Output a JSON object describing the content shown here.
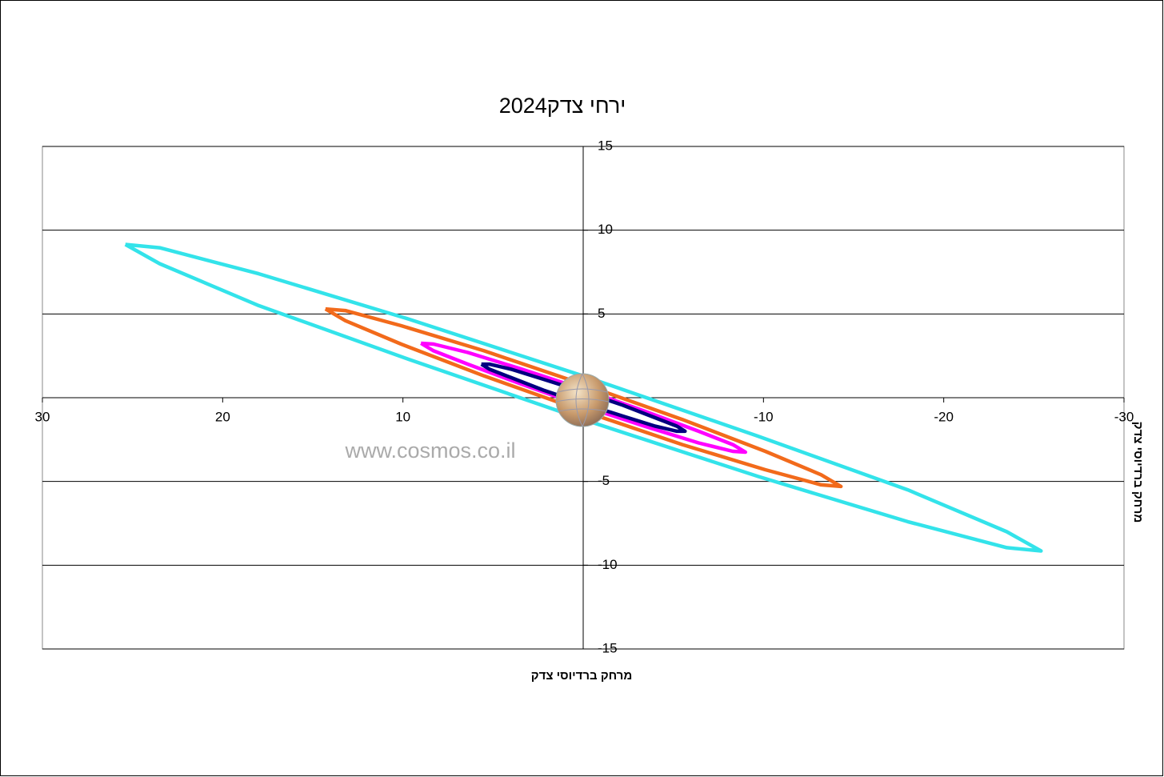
{
  "chart_data": {
    "type": "line",
    "title": "ירחי צדק2024",
    "x_label": "מרחק ברדיוסי צדק",
    "y_label": "מרחק ברדיוסי צדק",
    "watermark": "www.cosmos.co.il",
    "xlim": [
      30,
      -30
    ],
    "ylim": [
      -15,
      15
    ],
    "xticks": [
      30,
      20,
      10,
      -10,
      -20,
      -30
    ],
    "yticks": [
      15,
      10,
      5,
      -5,
      -10,
      -15
    ],
    "grid": true,
    "series": [
      {
        "color": "#33e3ea",
        "x": [
          25.4,
          23.5,
          18.0,
          9.7,
          0,
          -9.7,
          -18.0,
          -23.5,
          -25.4,
          -23.5,
          -18.0,
          -9.7,
          0,
          9.7,
          18.0,
          23.5,
          25.4
        ],
        "values": [
          9.15,
          8.95,
          7.4,
          4.7,
          1.3,
          -2.3,
          -5.5,
          -8.0,
          -9.15,
          -8.95,
          -7.4,
          -4.7,
          -1.3,
          2.3,
          5.5,
          8.0,
          9.15
        ]
      },
      {
        "color": "#f26a1b",
        "x": [
          14.3,
          13.2,
          10.1,
          5.5,
          0,
          -5.5,
          -10.1,
          -13.2,
          -14.3,
          -13.2,
          -10.1,
          -5.5,
          0,
          5.5,
          10.1,
          13.2,
          14.3
        ],
        "values": [
          5.3,
          5.2,
          4.3,
          2.8,
          0.8,
          -1.3,
          -3.2,
          -4.6,
          -5.3,
          -5.2,
          -4.3,
          -2.8,
          -0.8,
          1.3,
          3.2,
          4.6,
          5.3
        ]
      },
      {
        "color": "#ff00ff",
        "x": [
          9.0,
          8.3,
          6.4,
          3.4,
          0,
          -3.4,
          -6.4,
          -8.3,
          -9.0,
          -8.3,
          -6.4,
          -3.4,
          0,
          3.4,
          6.4,
          8.3,
          9.0
        ],
        "values": [
          3.25,
          3.2,
          2.7,
          1.7,
          0.5,
          -0.8,
          -2.0,
          -2.8,
          -3.25,
          -3.2,
          -2.7,
          -1.7,
          -0.5,
          0.8,
          2.0,
          2.8,
          3.25
        ]
      },
      {
        "color": "#000080",
        "x": [
          5.65,
          5.2,
          4.0,
          2.2,
          0,
          -2.2,
          -4.0,
          -5.2,
          -5.65,
          -5.2,
          -4.0,
          -2.2,
          0,
          2.2,
          4.0,
          5.2,
          5.65
        ],
        "values": [
          2.0,
          2.0,
          1.7,
          1.1,
          0.35,
          -0.45,
          -1.2,
          -1.7,
          -2.0,
          -2.0,
          -1.7,
          -1.1,
          -0.35,
          0.45,
          1.2,
          1.7,
          2.0
        ]
      }
    ]
  }
}
